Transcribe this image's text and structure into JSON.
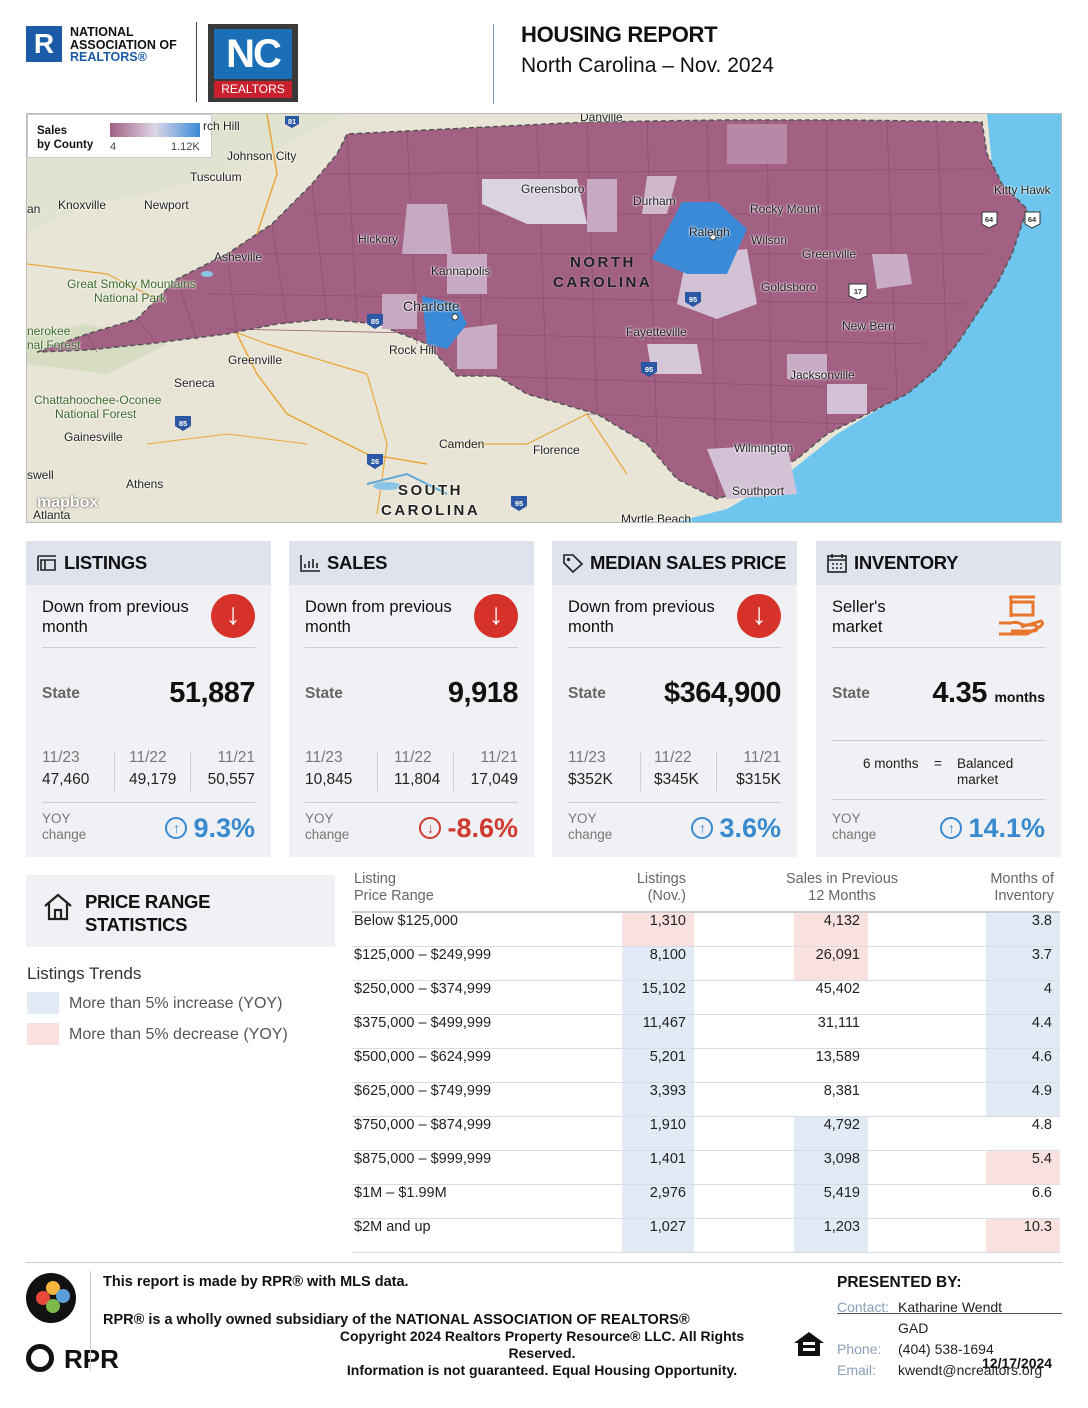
{
  "header": {
    "nar_logo": {
      "mark": "R",
      "line1": "NATIONAL",
      "line2": "ASSOCIATION OF",
      "line3": "REALTORS®"
    },
    "nc_logo": {
      "mark": "NC",
      "sub": "REALTORS"
    },
    "title": "HOUSING REPORT",
    "subtitle": "North Carolina  –  Nov. 2024"
  },
  "map": {
    "legend": {
      "title_line1": "Sales",
      "title_line2": "by County",
      "min": "4",
      "max": "1.12K"
    },
    "attribution": "mapbox",
    "state_label_line1": "NORTH",
    "state_label_line2": "CAROLINA",
    "sc_label_line1": "SOUTH",
    "sc_label_line2": "CAROLINA",
    "cities": [
      "Danville",
      "rch Hill",
      "Johnson City",
      "Tusculum",
      "Knoxville",
      "Newport",
      "an",
      "Greensboro",
      "Durham",
      "Rocky Mount",
      "Kitty Hawk",
      "Raleigh",
      "Wilson",
      "Hickory",
      "Asheville",
      "Kannapolis",
      "Greenville",
      "Great Smoky Mountains",
      "National Park",
      "Charlotte",
      "Goldsboro",
      "New Bern",
      "Fayetteville",
      "Rock Hill",
      "nerokee",
      "nal Forest",
      "Greenville",
      "Seneca",
      "Jacksonville",
      "Chattahoochee-Oconee",
      "National Forest",
      "Gainesville",
      "Camden",
      "Florence",
      "Wilmington",
      "swell",
      "Athens",
      "Southport",
      "Atlanta",
      "Myrtle Beach"
    ],
    "shields": [
      "81",
      "85",
      "95",
      "17",
      "95",
      "85",
      "26",
      "95",
      "64",
      "64"
    ]
  },
  "cards": [
    {
      "title": "LISTINGS",
      "icon": "listings-icon",
      "trend": "Down from previous month",
      "state_label": "State",
      "state_value": "51,887",
      "state_unit": "",
      "history": [
        {
          "year": "11/23",
          "value": "47,460"
        },
        {
          "year": "11/22",
          "value": "49,179"
        },
        {
          "year": "11/21",
          "value": "50,557"
        }
      ],
      "yoy_label_1": "YOY",
      "yoy_label_2": "change",
      "yoy_value": "9.3%",
      "yoy_dir": "up"
    },
    {
      "title": "SALES",
      "icon": "bar-chart-icon",
      "trend": "Down from previous month",
      "state_label": "State",
      "state_value": "9,918",
      "state_unit": "",
      "history": [
        {
          "year": "11/23",
          "value": "10,845"
        },
        {
          "year": "11/22",
          "value": "11,804"
        },
        {
          "year": "11/21",
          "value": "17,049"
        }
      ],
      "yoy_label_1": "YOY",
      "yoy_label_2": "change",
      "yoy_value": "-8.6%",
      "yoy_dir": "down"
    },
    {
      "title": "MEDIAN SALES PRICE",
      "icon": "price-tag-icon",
      "trend": "Down from previous month",
      "state_label": "State",
      "state_value": "$364,900",
      "state_unit": "",
      "history": [
        {
          "year": "11/23",
          "value": "$352K"
        },
        {
          "year": "11/22",
          "value": "$345K"
        },
        {
          "year": "11/21",
          "value": "$315K"
        }
      ],
      "yoy_label_1": "YOY",
      "yoy_label_2": "change",
      "yoy_value": "3.6%",
      "yoy_dir": "up"
    },
    {
      "title": "INVENTORY",
      "icon": "calendar-icon",
      "trend": "Seller's market",
      "state_label": "State",
      "state_value": "4.35",
      "state_unit": "months",
      "balanced_left": "6 months",
      "balanced_eq": "=",
      "balanced_right_1": "Balanced",
      "balanced_right_2": "market",
      "yoy_label_1": "YOY",
      "yoy_label_2": "change",
      "yoy_value": "14.1%",
      "yoy_dir": "up"
    }
  ],
  "price_range": {
    "title_line1": "PRICE RANGE",
    "title_line2": "STATISTICS",
    "trends_title": "Listings Trends",
    "legend_up": "More than 5% increase (YOY)",
    "legend_down": "More than 5% decrease (YOY)",
    "headers": {
      "range_1": "Listing",
      "range_2": "Price Range",
      "listings_1": "Listings",
      "listings_2": "(Nov.)",
      "sales_1": "Sales in Previous",
      "sales_2": "12 Months",
      "months_1": "Months of",
      "months_2": "Inventory"
    },
    "rows": [
      {
        "range": "Below $125,000",
        "listings": "1,310",
        "sales": "4,132",
        "months": "3.8",
        "l_hl": "down",
        "s_hl": "down",
        "m_hl": "up"
      },
      {
        "range": "$125,000  –  $249,999",
        "listings": "8,100",
        "sales": "26,091",
        "months": "3.7",
        "l_hl": "up",
        "s_hl": "down",
        "m_hl": "up"
      },
      {
        "range": "$250,000  –  $374,999",
        "listings": "15,102",
        "sales": "45,402",
        "months": "4",
        "l_hl": "up",
        "s_hl": "",
        "m_hl": "up"
      },
      {
        "range": "$375,000  –  $499,999",
        "listings": "11,467",
        "sales": "31,111",
        "months": "4.4",
        "l_hl": "up",
        "s_hl": "",
        "m_hl": "up"
      },
      {
        "range": "$500,000  –  $624,999",
        "listings": "5,201",
        "sales": "13,589",
        "months": "4.6",
        "l_hl": "up",
        "s_hl": "",
        "m_hl": "up"
      },
      {
        "range": "$625,000  –  $749,999",
        "listings": "3,393",
        "sales": "8,381",
        "months": "4.9",
        "l_hl": "up",
        "s_hl": "",
        "m_hl": "up"
      },
      {
        "range": "$750,000  –  $874,999",
        "listings": "1,910",
        "sales": "4,792",
        "months": "4.8",
        "l_hl": "up",
        "s_hl": "up",
        "m_hl": ""
      },
      {
        "range": "$875,000  –  $999,999",
        "listings": "1,401",
        "sales": "3,098",
        "months": "5.4",
        "l_hl": "up",
        "s_hl": "up",
        "m_hl": "down"
      },
      {
        "range": "$1M  –  $1.99M",
        "listings": "2,976",
        "sales": "5,419",
        "months": "6.6",
        "l_hl": "up",
        "s_hl": "up",
        "m_hl": ""
      },
      {
        "range": "$2M  and  up",
        "listings": "1,027",
        "sales": "1,203",
        "months": "10.3",
        "l_hl": "up",
        "s_hl": "up",
        "m_hl": "down"
      }
    ]
  },
  "footer": {
    "made_by": "This report is made by RPR® with MLS data.",
    "subsidiary": "RPR® is a wholly owned subsidiary of the NATIONAL ASSOCIATION OF REALTORS®",
    "copyright_1": "Copyright 2024 Realtors Property Resource® LLC. All Rights",
    "copyright_2": "Reserved.",
    "copyright_3": "Information is not guaranteed. Equal Housing Opportunity.",
    "rpr_label": "RPR",
    "presented_by": "PRESENTED BY:",
    "contact_label": "Contact:",
    "contact_value": "Katharine Wendt",
    "contact_value_2": "GAD",
    "phone_label": "Phone:",
    "phone_value": "(404) 538-1694",
    "email_label": "Email:",
    "email_value": "kwendt@ncrealtors.org",
    "date": "12/17/2024"
  },
  "colors": {
    "accent_blue": "#3a8ad0",
    "down_red": "#cf3a2e",
    "county_purple": "#a26083",
    "inventory_orange": "#e8762c"
  }
}
